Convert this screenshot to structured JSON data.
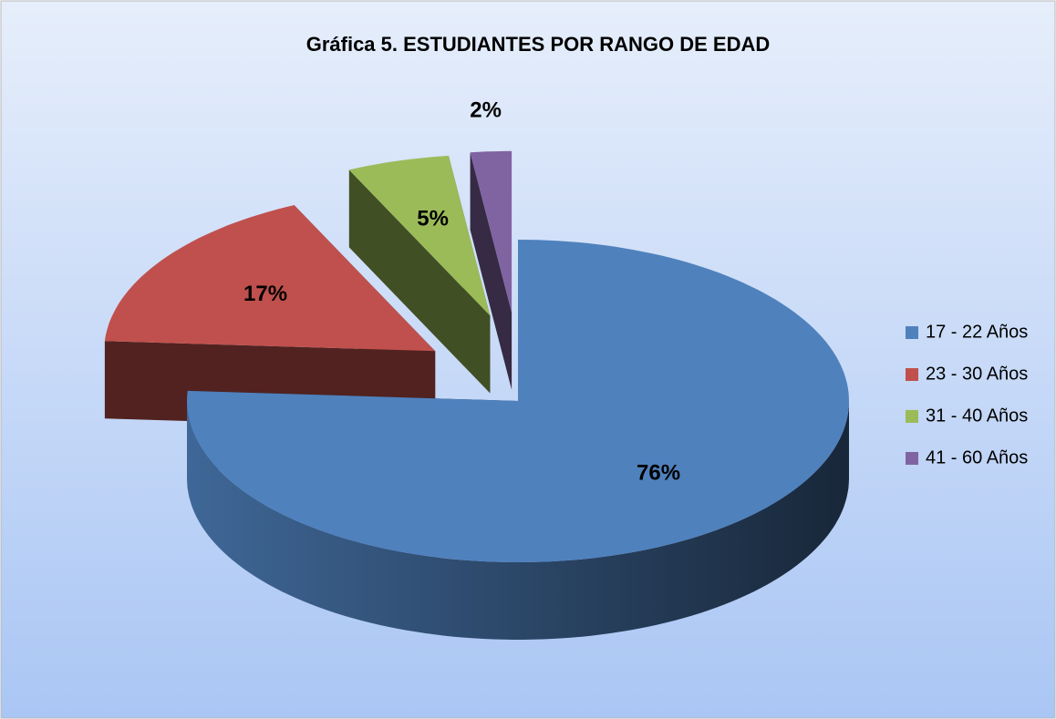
{
  "chart_data": {
    "type": "pie",
    "title": "Gráfica 5. ESTUDIANTES POR RANGO DE EDAD",
    "categories": [
      "17 - 22 Años",
      "23 - 30 Años",
      "31 - 40 Años",
      "41 - 60 Años"
    ],
    "values": [
      76,
      17,
      5,
      2
    ],
    "value_labels": [
      "76%",
      "17%",
      "5%",
      "2%"
    ],
    "colors": [
      "#4f81bd",
      "#c0504d",
      "#9bbb59",
      "#8064a2"
    ],
    "legend": "right"
  }
}
